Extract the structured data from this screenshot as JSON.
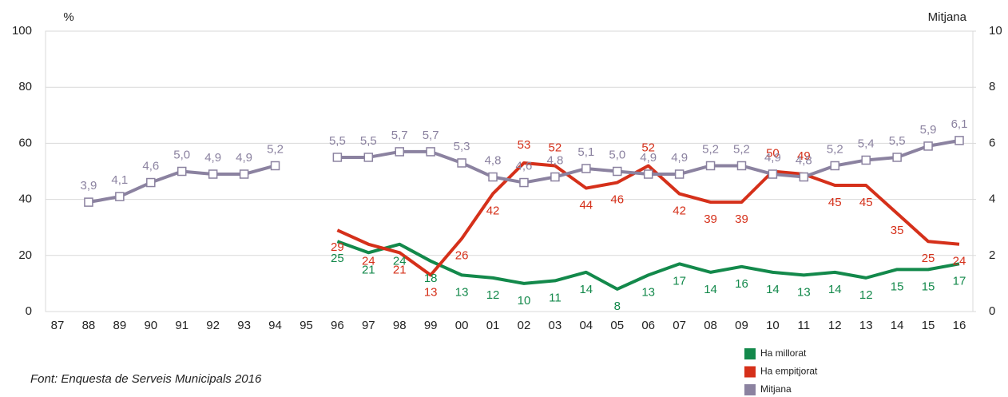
{
  "chart_data": {
    "type": "line",
    "y_label": "%",
    "y2_label": "Mitjana",
    "source": "Font: Enquesta de Serveis Municipals 2016",
    "categories": [
      "87",
      "88",
      "89",
      "90",
      "91",
      "92",
      "93",
      "94",
      "95",
      "96",
      "97",
      "98",
      "99",
      "00",
      "01",
      "02",
      "03",
      "04",
      "05",
      "06",
      "07",
      "08",
      "09",
      "10",
      "11",
      "12",
      "13",
      "14",
      "15",
      "16"
    ],
    "ylim": [
      0,
      100
    ],
    "yticks": [
      0,
      20,
      40,
      60,
      80,
      100
    ],
    "y2lim": [
      0,
      10
    ],
    "y2ticks": [
      0,
      2,
      4,
      6,
      8,
      10
    ],
    "grid": true,
    "legend": "bottom-right",
    "series": [
      {
        "name": "Ha millorat",
        "color": "#13894b",
        "values": [
          null,
          null,
          null,
          null,
          null,
          null,
          null,
          null,
          null,
          25,
          21,
          24,
          18,
          13,
          12,
          10,
          11,
          14,
          8,
          13,
          17,
          14,
          16,
          14,
          13,
          14,
          12,
          15,
          15,
          17
        ]
      },
      {
        "name": "Ha empitjorat",
        "color": "#d5301a",
        "values": [
          null,
          null,
          null,
          null,
          null,
          null,
          null,
          null,
          null,
          29,
          24,
          21,
          13,
          26,
          42,
          53,
          52,
          44,
          46,
          52,
          42,
          39,
          39,
          50,
          49,
          45,
          45,
          35,
          25,
          24
        ]
      },
      {
        "name": "Mitjana",
        "color": "#8b82a0",
        "axis": "y2",
        "markers": true,
        "values": [
          null,
          3.9,
          4.1,
          4.6,
          5.0,
          4.9,
          4.9,
          5.2,
          null,
          5.5,
          5.5,
          5.7,
          5.7,
          5.3,
          4.8,
          4.6,
          4.8,
          5.1,
          5.0,
          4.9,
          4.9,
          5.2,
          5.2,
          4.9,
          4.8,
          5.2,
          5.4,
          5.5,
          5.9,
          6.1
        ],
        "value_labels": [
          null,
          "3,9",
          "4,1",
          "4,6",
          "5,0",
          "4,9",
          "4,9",
          "5,2",
          null,
          "5,5",
          "5,5",
          "5,7",
          "5,7",
          "5,3",
          "4,8",
          "4,6",
          "4,8",
          "5,1",
          "5,0",
          "4,9",
          "4,9",
          "5,2",
          "5,2",
          "4,9",
          "4,8",
          "5,2",
          "5,4",
          "5,5",
          "5,9",
          "6,1"
        ]
      }
    ]
  }
}
